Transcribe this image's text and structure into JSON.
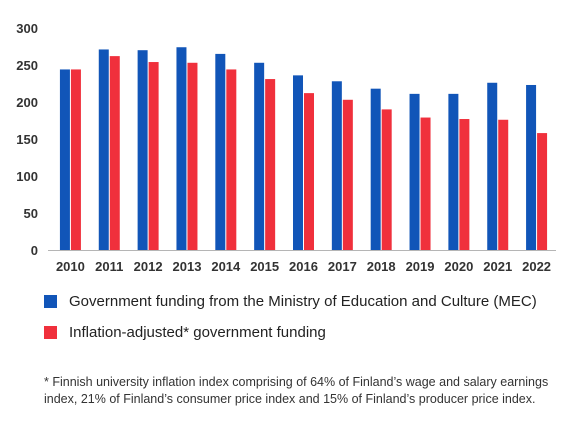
{
  "chart_data": {
    "type": "bar",
    "categories": [
      "2010",
      "2011",
      "2012",
      "2013",
      "2014",
      "2015",
      "2016",
      "2017",
      "2018",
      "2019",
      "2020",
      "2021",
      "2022"
    ],
    "series": [
      {
        "name": "Government funding from the Ministry of Education and Culture (MEC)",
        "color": "#1155b8",
        "values": [
          244,
          271,
          270,
          274,
          265,
          253,
          236,
          228,
          218,
          211,
          211,
          226,
          223
        ]
      },
      {
        "name": "Inflation-adjusted* government funding",
        "color": "#f0303c",
        "values": [
          244,
          262,
          254,
          253,
          244,
          231,
          212,
          203,
          190,
          179,
          177,
          176,
          158
        ]
      }
    ],
    "yticks": [
      "0",
      "50",
      "100",
      "150",
      "200",
      "250",
      "300"
    ],
    "ylim": [
      0,
      300
    ],
    "grid": false,
    "legend_position": "bottom"
  },
  "legend": {
    "mec_label": "Government funding from the Ministry of Education and Culture (MEC)",
    "inflation_label": "Inflation-adjusted* government funding"
  },
  "footnote": "* Finnish university inflation index comprising of 64% of Finland’s wage and salary earnings index, 21% of Finland’s consumer price index and 15% of Finland’s producer price index."
}
